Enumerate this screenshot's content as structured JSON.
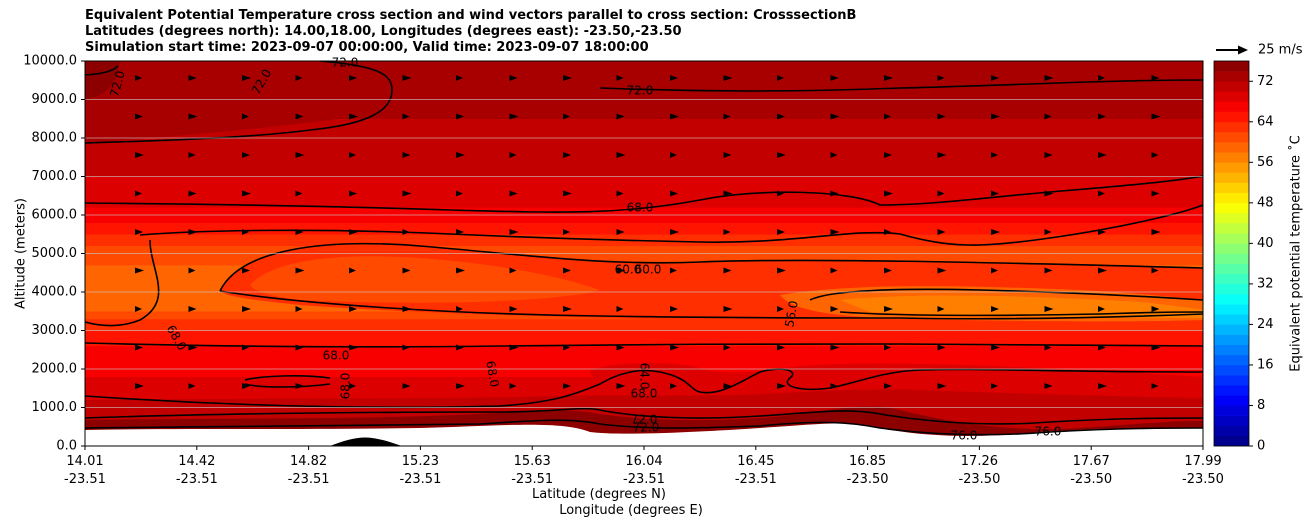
{
  "chart_data": {
    "type": "heatmap",
    "title_lines": [
      "Equivalent Potential Temperature cross section and wind vectors parallel to cross section: CrosssectionB",
      "Latitudes (degrees north): 14.00,18.00, Longitudes (degrees east): -23.50,-23.50",
      "Simulation start time: 2023-09-07 00:00:00, Valid time: 2023-09-07 18:00:00"
    ],
    "ylabel": "Altitude (meters)",
    "xlabel_lines": [
      "Latitude (degrees N)",
      "Longitude (degrees E)"
    ],
    "ylim": [
      0,
      10000
    ],
    "y_ticks": [
      "0.0",
      "1000.0",
      "2000.0",
      "3000.0",
      "4000.0",
      "5000.0",
      "6000.0",
      "7000.0",
      "8000.0",
      "9000.0",
      "10000.0"
    ],
    "x_ticks": [
      {
        "lat": "14.01",
        "lon": "-23.51"
      },
      {
        "lat": "14.42",
        "lon": "-23.51"
      },
      {
        "lat": "14.82",
        "lon": "-23.51"
      },
      {
        "lat": "15.23",
        "lon": "-23.51"
      },
      {
        "lat": "15.63",
        "lon": "-23.51"
      },
      {
        "lat": "16.04",
        "lon": "-23.51"
      },
      {
        "lat": "16.45",
        "lon": "-23.51"
      },
      {
        "lat": "16.85",
        "lon": "-23.50"
      },
      {
        "lat": "17.26",
        "lon": "-23.50"
      },
      {
        "lat": "17.67",
        "lon": "-23.50"
      },
      {
        "lat": "17.99",
        "lon": "-23.50"
      }
    ],
    "grid": "horizontal",
    "colorbar": {
      "label": "Equivalent potential temperature ˚C",
      "min": 0,
      "max": 76,
      "step": 2,
      "ticks": [
        "0",
        "8",
        "16",
        "24",
        "32",
        "40",
        "48",
        "56",
        "64",
        "72"
      ]
    },
    "quiver_key": {
      "label": "25 m/s"
    },
    "contour_labels": [
      "72.0",
      "72.0",
      "72.0",
      "72.0",
      "68.0",
      "60.0",
      "60.0",
      "56.0",
      "68.0",
      "68.0",
      "68.0",
      "64.0",
      "68.0",
      "68.0",
      "72.0",
      "76.0",
      "76.0",
      "72.0"
    ],
    "field_profile": {
      "altitudes_m": [
        500,
        1000,
        1500,
        2000,
        2500,
        3000,
        3500,
        4000,
        4500,
        5000,
        5500,
        6000,
        6500,
        7000,
        7500,
        8000,
        9000,
        10000
      ],
      "theta_e_c": [
        73,
        70,
        68.5,
        67.5,
        66.5,
        64,
        60,
        58.5,
        59,
        61,
        64,
        67,
        69,
        70,
        71,
        71.5,
        72.5,
        73
      ]
    }
  }
}
